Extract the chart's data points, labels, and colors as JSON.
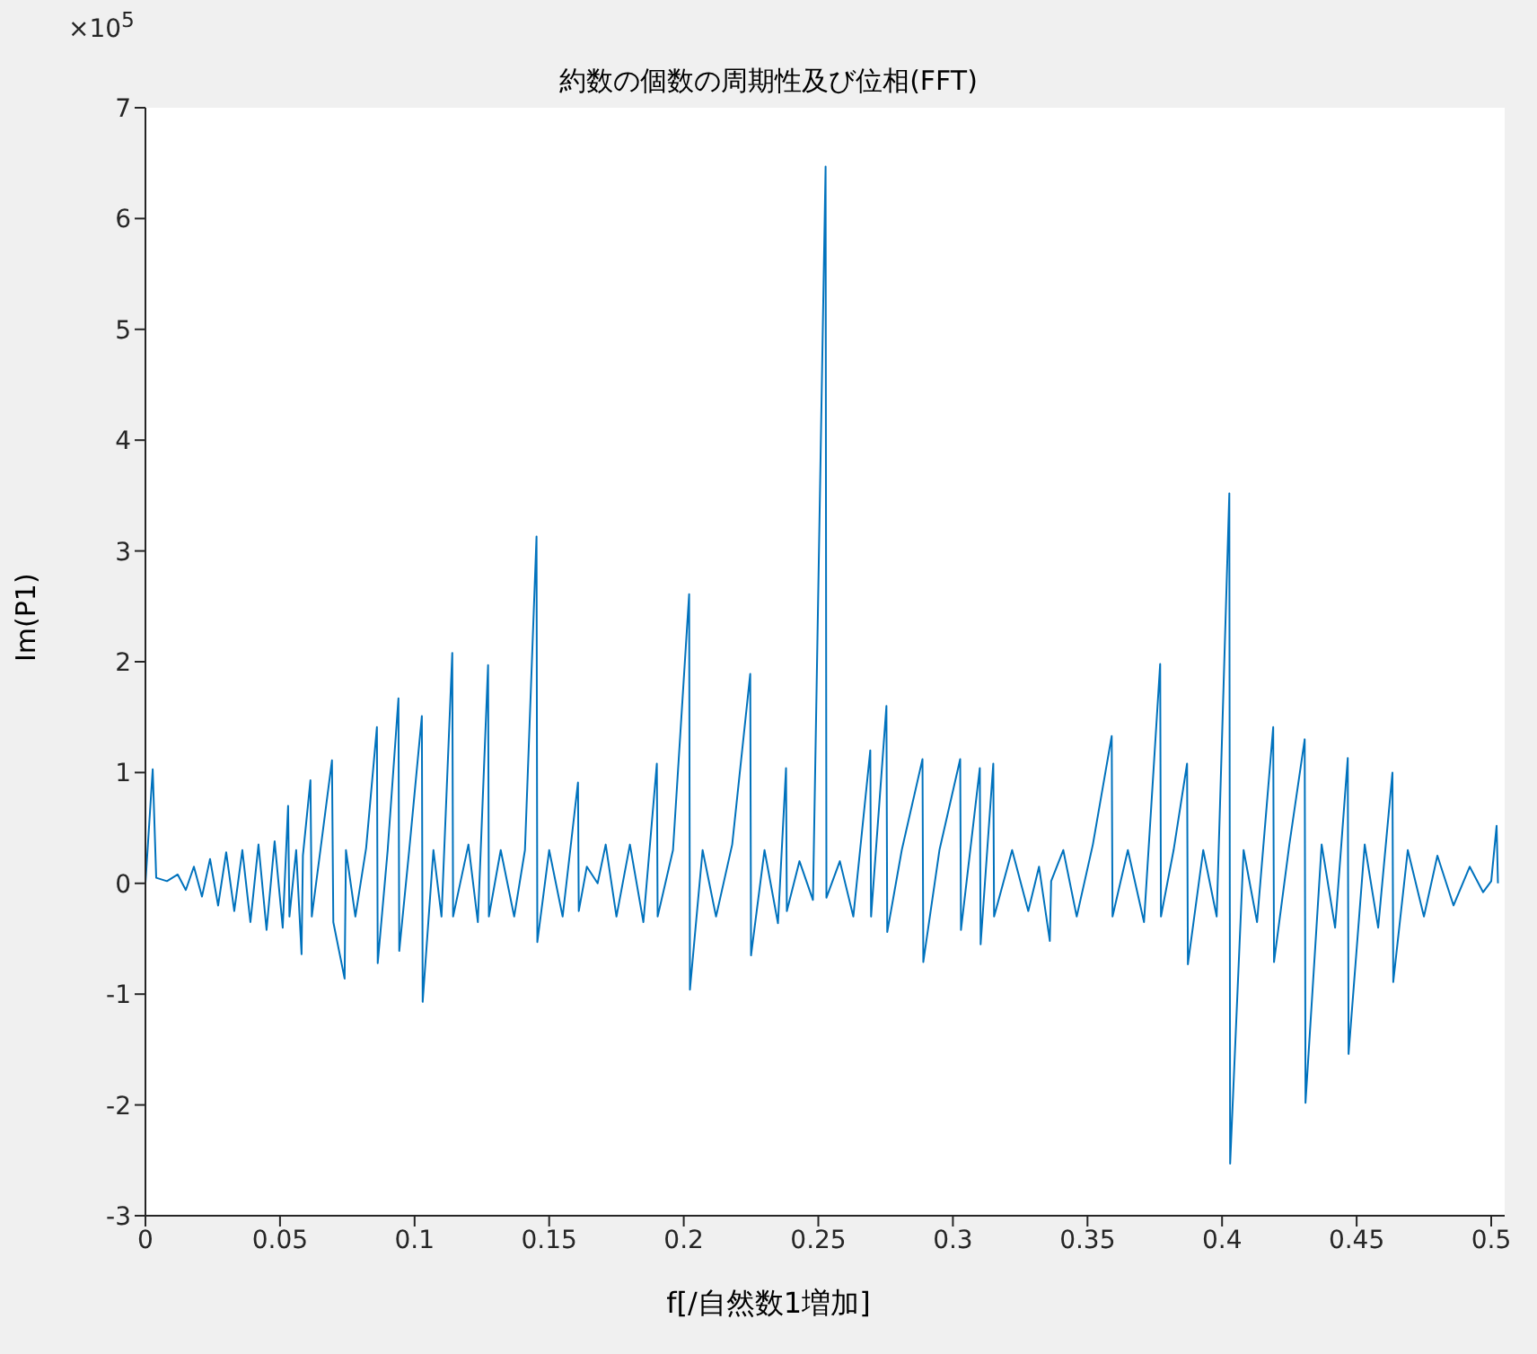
{
  "chart_data": {
    "type": "line",
    "title": "約数の個数の周期性及び位相(FFT)",
    "xlabel": "f[/自然数1増加]",
    "ylabel": "Im(P1)",
    "annotations": [
      "×10$^{5}$"
    ],
    "xlim": [
      0,
      0.505
    ],
    "xticks": [
      0,
      0.05,
      0.1,
      0.15,
      0.2,
      0.25,
      0.3,
      0.35,
      0.4,
      0.45,
      0.5
    ],
    "ylim": [
      -3,
      7
    ],
    "yticks": [
      -3,
      -2,
      -1,
      0,
      1,
      2,
      3,
      4,
      5,
      6,
      7
    ],
    "series": [
      {
        "color": "#0072bd",
        "x": [
          0,
          0.0027,
          0.004,
          0.008,
          0.012,
          0.015,
          0.018,
          0.021,
          0.024,
          0.027,
          0.03,
          0.033,
          0.036,
          0.039,
          0.042,
          0.045,
          0.048,
          0.051,
          0.053,
          0.0535,
          0.056,
          0.058,
          0.0585,
          0.0613,
          0.0618,
          0.065,
          0.0693,
          0.0698,
          0.074,
          0.0745,
          0.078,
          0.082,
          0.086,
          0.0863,
          0.09,
          0.094,
          0.0943,
          0.098,
          0.1027,
          0.103,
          0.107,
          0.11,
          0.114,
          0.1143,
          0.12,
          0.1235,
          0.1273,
          0.1276,
          0.132,
          0.137,
          0.141,
          0.1453,
          0.1456,
          0.15,
          0.155,
          0.1607,
          0.161,
          0.164,
          0.168,
          0.171,
          0.175,
          0.18,
          0.185,
          0.19,
          0.1903,
          0.196,
          0.202,
          0.2023,
          0.207,
          0.212,
          0.218,
          0.2247,
          0.225,
          0.23,
          0.235,
          0.238,
          0.2383,
          0.243,
          0.248,
          0.2527,
          0.253,
          0.258,
          0.263,
          0.2693,
          0.2696,
          0.2753,
          0.2756,
          0.281,
          0.2887,
          0.289,
          0.295,
          0.3027,
          0.303,
          0.31,
          0.3103,
          0.315,
          0.3153,
          0.322,
          0.328,
          0.332,
          0.336,
          0.3365,
          0.341,
          0.346,
          0.352,
          0.359,
          0.3593,
          0.365,
          0.371,
          0.377,
          0.3773,
          0.382,
          0.387,
          0.3873,
          0.393,
          0.398,
          0.4027,
          0.403,
          0.408,
          0.413,
          0.419,
          0.4193,
          0.425,
          0.4307,
          0.431,
          0.437,
          0.442,
          0.4467,
          0.447,
          0.453,
          0.458,
          0.4633,
          0.4636,
          0.469,
          0.475,
          0.48,
          0.486,
          0.492,
          0.497,
          0.5,
          0.502,
          0.5025
        ],
        "values": [
          0,
          1.03,
          0.05,
          0.02,
          0.08,
          -0.06,
          0.15,
          -0.12,
          0.22,
          -0.2,
          0.28,
          -0.25,
          0.3,
          -0.35,
          0.35,
          -0.42,
          0.38,
          -0.4,
          0.7,
          -0.3,
          0.3,
          -0.64,
          0.25,
          0.93,
          -0.3,
          0.3,
          1.11,
          -0.35,
          -0.86,
          0.3,
          -0.3,
          0.32,
          1.41,
          -0.72,
          0.3,
          1.67,
          -0.61,
          0.3,
          1.51,
          -1.07,
          0.3,
          -0.3,
          2.08,
          -0.3,
          0.35,
          -0.35,
          1.97,
          -0.3,
          0.3,
          -0.3,
          0.3,
          3.13,
          -0.53,
          0.3,
          -0.3,
          0.91,
          -0.25,
          0.15,
          0,
          0.35,
          -0.3,
          0.35,
          -0.35,
          1.08,
          -0.3,
          0.3,
          2.61,
          -0.96,
          0.3,
          -0.3,
          0.35,
          1.89,
          -0.65,
          0.3,
          -0.36,
          1.04,
          -0.25,
          0.2,
          -0.15,
          6.47,
          -0.13,
          0.2,
          -0.3,
          1.2,
          -0.3,
          1.6,
          -0.44,
          0.3,
          1.12,
          -0.71,
          0.3,
          1.12,
          -0.42,
          1.04,
          -0.55,
          1.08,
          -0.3,
          0.3,
          -0.25,
          0.15,
          -0.52,
          0.02,
          0.3,
          -0.3,
          0.35,
          1.33,
          -0.3,
          0.3,
          -0.35,
          1.98,
          -0.3,
          0.3,
          1.08,
          -0.73,
          0.3,
          -0.3,
          3.52,
          -2.53,
          0.3,
          -0.35,
          1.41,
          -0.71,
          0.35,
          1.3,
          -1.98,
          0.35,
          -0.4,
          1.13,
          -1.54,
          0.35,
          -0.4,
          1.0,
          -0.89,
          0.3,
          -0.3,
          0.25,
          -0.2,
          0.15,
          -0.08,
          0.02,
          0.52,
          0
        ]
      }
    ]
  }
}
